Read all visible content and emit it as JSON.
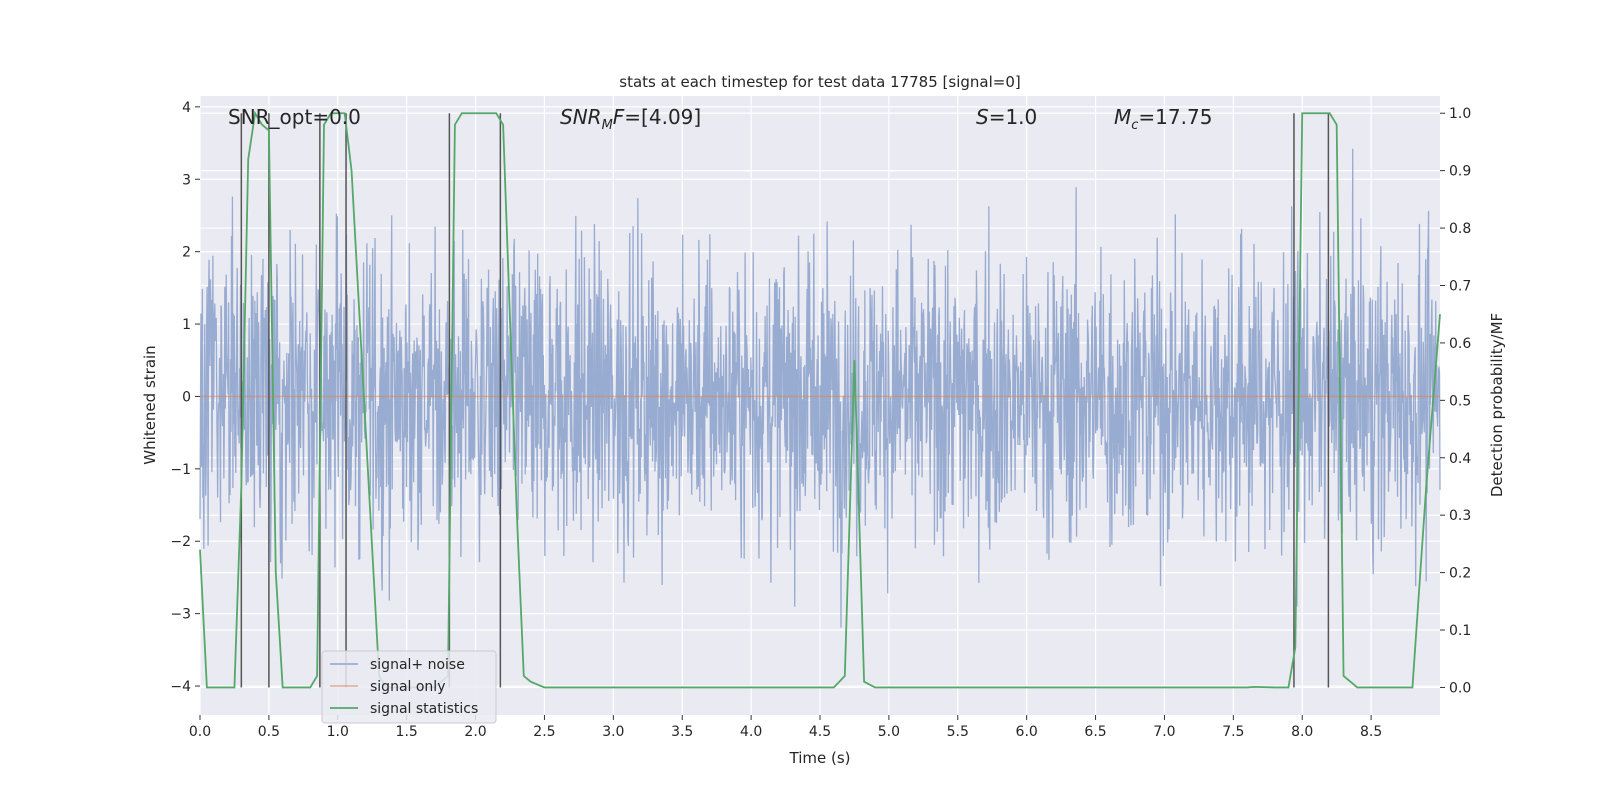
{
  "chart_data": {
    "type": "line",
    "title": "stats at each timestep for test data 17785 [signal=0]",
    "xlabel": "Time (s)",
    "ylabel": "Whitened strain",
    "y2label": "Detection probability/MF",
    "xlim": [
      0.0,
      9.0
    ],
    "ylim": [
      -4.4,
      4.15
    ],
    "y2lim": [
      -0.048,
      1.03
    ],
    "xticks": [
      "0.0",
      "0.5",
      "1.0",
      "1.5",
      "2.0",
      "2.5",
      "3.0",
      "3.5",
      "4.0",
      "4.5",
      "5.0",
      "5.5",
      "6.0",
      "6.5",
      "7.0",
      "7.5",
      "8.0",
      "8.5"
    ],
    "yticks": [
      "4",
      "3",
      "2",
      "1",
      "0",
      "−1",
      "−2",
      "−3",
      "−4"
    ],
    "y2ticks": [
      "1.0",
      "0.9",
      "0.8",
      "0.7",
      "0.6",
      "0.5",
      "0.4",
      "0.3",
      "0.2",
      "0.1",
      "0.0"
    ],
    "annotations": {
      "snr_opt": "SNR_opt=0.0",
      "snr_mf_main": "SNR",
      "snr_mf_sub": "M",
      "snr_mf_main2": "F",
      "snr_mf_rest": "=[4.09]",
      "s_label": "S",
      "s_rest": "=1.0",
      "mc_label": "M",
      "mc_sub": "c",
      "mc_rest": "=17.75"
    },
    "legend": {
      "placement": "lower-left",
      "entries": [
        "signal+ noise",
        "signal only",
        "signal statistics"
      ]
    },
    "series": [
      {
        "name": "signal+ noise",
        "description": "whitened noise, roughly Gaussian with std ~1, peaks up to about +3.8 and down to -4.0",
        "color": "#8fa4cc",
        "noise_range": [
          -4.0,
          3.8
        ],
        "std": 1.0
      },
      {
        "name": "signal only",
        "color": "#dd8452",
        "x": [
          0.0,
          9.0
        ],
        "y": [
          0.0,
          0.0
        ]
      },
      {
        "name": "signal statistics",
        "color": "#55a868",
        "axis": "right",
        "x": [
          0.0,
          0.05,
          0.25,
          0.3,
          0.35,
          0.4,
          0.45,
          0.5,
          0.55,
          0.6,
          0.8,
          0.85,
          0.9,
          0.95,
          1.0,
          1.05,
          1.1,
          1.3,
          1.35,
          1.7,
          1.8,
          1.85,
          1.9,
          2.1,
          2.15,
          2.2,
          2.3,
          2.35,
          2.4,
          2.5,
          4.6,
          4.68,
          4.75,
          4.82,
          4.9,
          7.6,
          7.65,
          7.8,
          7.9,
          7.95,
          8.0,
          8.2,
          8.25,
          8.3,
          8.4,
          8.8,
          8.9,
          9.0
        ],
        "y": [
          0.24,
          0.0,
          0.0,
          0.35,
          0.92,
          1.0,
          0.98,
          0.97,
          0.2,
          0.0,
          0.0,
          0.02,
          0.98,
          1.0,
          1.0,
          1.0,
          0.9,
          0.02,
          0.0,
          0.0,
          0.02,
          0.98,
          1.0,
          1.0,
          1.0,
          0.98,
          0.3,
          0.02,
          0.01,
          0.0,
          0.0,
          0.02,
          0.57,
          0.01,
          0.0,
          0.0,
          0.001,
          0.0,
          0.0,
          0.07,
          1.0,
          1.0,
          0.98,
          0.02,
          0.0,
          0.0,
          0.35,
          0.65
        ]
      }
    ],
    "detection_markers": {
      "color": "#555555",
      "x": [
        0.3,
        0.5,
        0.87,
        1.06,
        1.81,
        2.18,
        7.94,
        8.19
      ]
    }
  }
}
